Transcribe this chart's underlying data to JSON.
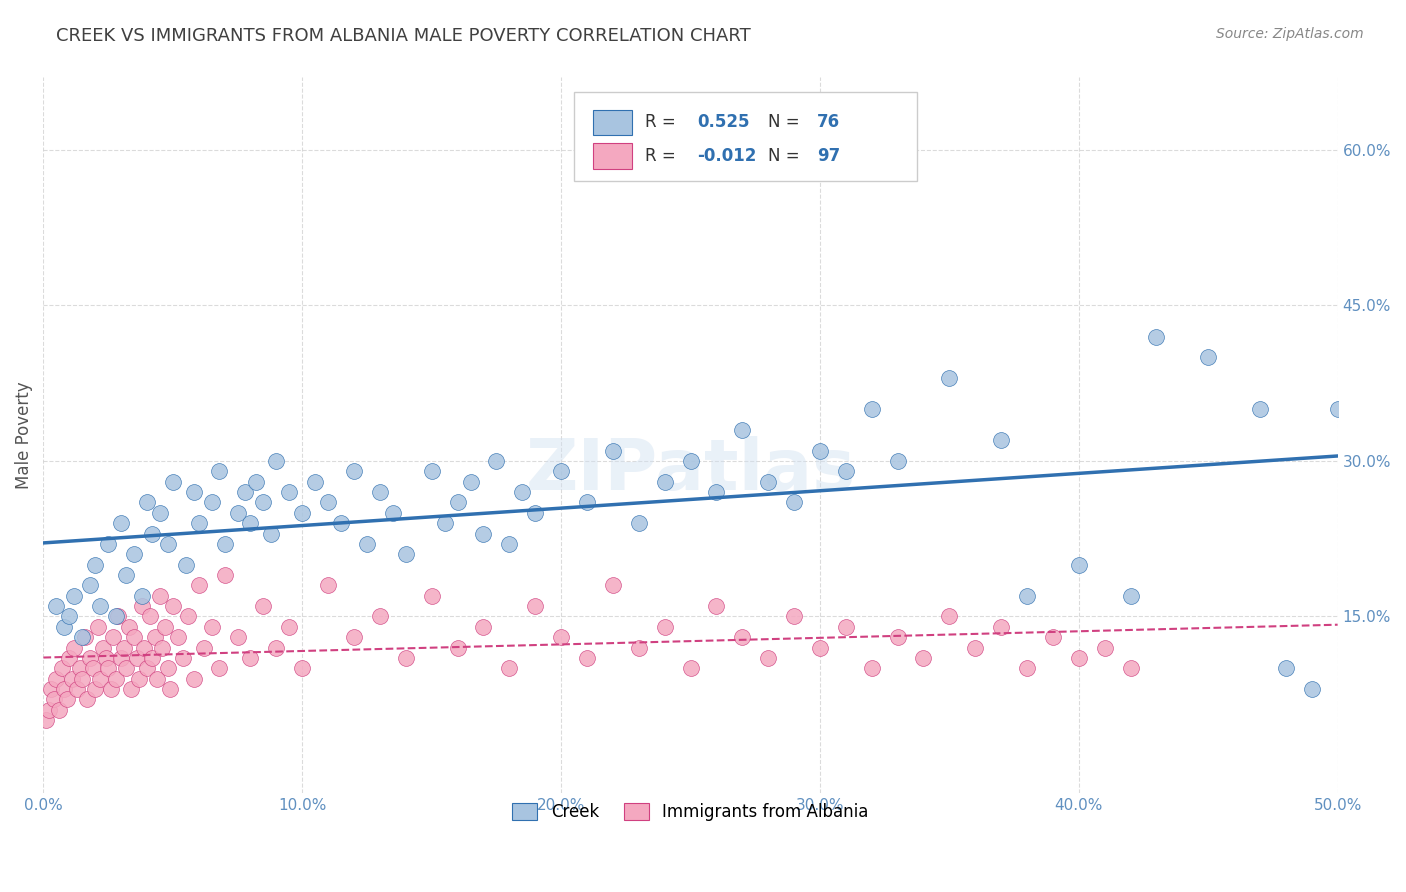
{
  "title": "CREEK VS IMMIGRANTS FROM ALBANIA MALE POVERTY CORRELATION CHART",
  "source": "Source: ZipAtlas.com",
  "ylabel": "Male Poverty",
  "xlim": [
    0.0,
    0.5
  ],
  "ylim": [
    -0.02,
    0.67
  ],
  "xtick_labels": [
    "0.0%",
    "10.0%",
    "20.0%",
    "30.0%",
    "40.0%",
    "50.0%"
  ],
  "xtick_vals": [
    0.0,
    0.1,
    0.2,
    0.3,
    0.4,
    0.5
  ],
  "ytick_vals": [
    0.15,
    0.3,
    0.45,
    0.6
  ],
  "ytick_labels": [
    "15.0%",
    "30.0%",
    "45.0%",
    "60.0%"
  ],
  "creek_color": "#a8c4e0",
  "albania_color": "#f4a8c0",
  "creek_line_color": "#3070b0",
  "albania_line_color": "#d04080",
  "creek_R": 0.525,
  "creek_N": 76,
  "albania_R": -0.012,
  "albania_N": 97,
  "legend_creek": "Creek",
  "legend_albania": "Immigrants from Albania",
  "background_color": "#ffffff",
  "grid_color": "#cccccc",
  "title_color": "#404040",
  "axis_color": "#6090c0",
  "watermark": "ZIPatlas",
  "creek_x": [
    0.005,
    0.008,
    0.01,
    0.012,
    0.015,
    0.018,
    0.02,
    0.022,
    0.025,
    0.028,
    0.03,
    0.032,
    0.035,
    0.038,
    0.04,
    0.042,
    0.045,
    0.048,
    0.05,
    0.055,
    0.058,
    0.06,
    0.065,
    0.068,
    0.07,
    0.075,
    0.078,
    0.08,
    0.082,
    0.085,
    0.088,
    0.09,
    0.095,
    0.1,
    0.105,
    0.11,
    0.115,
    0.12,
    0.125,
    0.13,
    0.135,
    0.14,
    0.15,
    0.155,
    0.16,
    0.165,
    0.17,
    0.175,
    0.18,
    0.185,
    0.19,
    0.2,
    0.21,
    0.22,
    0.23,
    0.24,
    0.25,
    0.26,
    0.27,
    0.28,
    0.29,
    0.3,
    0.31,
    0.32,
    0.33,
    0.35,
    0.37,
    0.38,
    0.4,
    0.42,
    0.43,
    0.45,
    0.47,
    0.48,
    0.49,
    0.5
  ],
  "creek_y": [
    0.16,
    0.14,
    0.15,
    0.17,
    0.13,
    0.18,
    0.2,
    0.16,
    0.22,
    0.15,
    0.24,
    0.19,
    0.21,
    0.17,
    0.26,
    0.23,
    0.25,
    0.22,
    0.28,
    0.2,
    0.27,
    0.24,
    0.26,
    0.29,
    0.22,
    0.25,
    0.27,
    0.24,
    0.28,
    0.26,
    0.23,
    0.3,
    0.27,
    0.25,
    0.28,
    0.26,
    0.24,
    0.29,
    0.22,
    0.27,
    0.25,
    0.21,
    0.29,
    0.24,
    0.26,
    0.28,
    0.23,
    0.3,
    0.22,
    0.27,
    0.25,
    0.29,
    0.26,
    0.31,
    0.24,
    0.28,
    0.3,
    0.27,
    0.33,
    0.28,
    0.26,
    0.31,
    0.29,
    0.35,
    0.3,
    0.38,
    0.32,
    0.17,
    0.2,
    0.17,
    0.42,
    0.4,
    0.35,
    0.1,
    0.08,
    0.35
  ],
  "albania_x": [
    0.001,
    0.002,
    0.003,
    0.004,
    0.005,
    0.006,
    0.007,
    0.008,
    0.009,
    0.01,
    0.011,
    0.012,
    0.013,
    0.014,
    0.015,
    0.016,
    0.017,
    0.018,
    0.019,
    0.02,
    0.021,
    0.022,
    0.023,
    0.024,
    0.025,
    0.026,
    0.027,
    0.028,
    0.029,
    0.03,
    0.031,
    0.032,
    0.033,
    0.034,
    0.035,
    0.036,
    0.037,
    0.038,
    0.039,
    0.04,
    0.041,
    0.042,
    0.043,
    0.044,
    0.045,
    0.046,
    0.047,
    0.048,
    0.049,
    0.05,
    0.052,
    0.054,
    0.056,
    0.058,
    0.06,
    0.062,
    0.065,
    0.068,
    0.07,
    0.075,
    0.08,
    0.085,
    0.09,
    0.095,
    0.1,
    0.11,
    0.12,
    0.13,
    0.14,
    0.15,
    0.16,
    0.17,
    0.18,
    0.19,
    0.2,
    0.21,
    0.22,
    0.23,
    0.24,
    0.25,
    0.26,
    0.27,
    0.28,
    0.29,
    0.3,
    0.31,
    0.32,
    0.33,
    0.34,
    0.35,
    0.36,
    0.37,
    0.38,
    0.39,
    0.4,
    0.41,
    0.42
  ],
  "albania_y": [
    0.05,
    0.06,
    0.08,
    0.07,
    0.09,
    0.06,
    0.1,
    0.08,
    0.07,
    0.11,
    0.09,
    0.12,
    0.08,
    0.1,
    0.09,
    0.13,
    0.07,
    0.11,
    0.1,
    0.08,
    0.14,
    0.09,
    0.12,
    0.11,
    0.1,
    0.08,
    0.13,
    0.09,
    0.15,
    0.11,
    0.12,
    0.1,
    0.14,
    0.08,
    0.13,
    0.11,
    0.09,
    0.16,
    0.12,
    0.1,
    0.15,
    0.11,
    0.13,
    0.09,
    0.17,
    0.12,
    0.14,
    0.1,
    0.08,
    0.16,
    0.13,
    0.11,
    0.15,
    0.09,
    0.18,
    0.12,
    0.14,
    0.1,
    0.19,
    0.13,
    0.11,
    0.16,
    0.12,
    0.14,
    0.1,
    0.18,
    0.13,
    0.15,
    0.11,
    0.17,
    0.12,
    0.14,
    0.1,
    0.16,
    0.13,
    0.11,
    0.18,
    0.12,
    0.14,
    0.1,
    0.16,
    0.13,
    0.11,
    0.15,
    0.12,
    0.14,
    0.1,
    0.13,
    0.11,
    0.15,
    0.12,
    0.14,
    0.1,
    0.13,
    0.11,
    0.12,
    0.1
  ]
}
